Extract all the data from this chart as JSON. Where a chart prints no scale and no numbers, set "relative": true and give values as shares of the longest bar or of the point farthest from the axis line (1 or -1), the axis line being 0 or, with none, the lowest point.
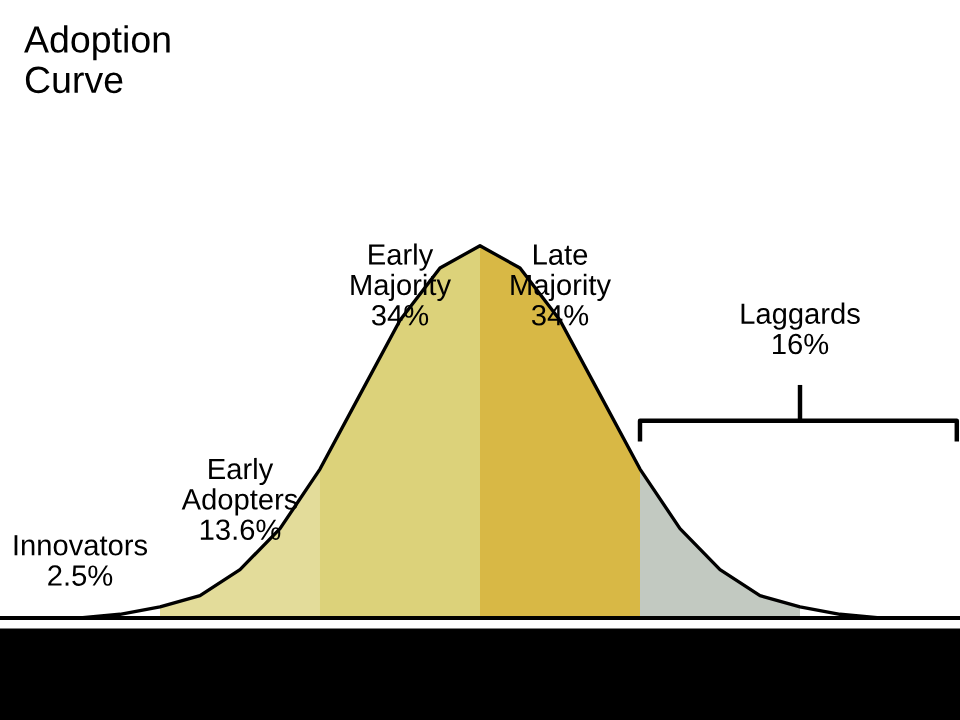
{
  "chart_data": {
    "type": "area",
    "title": "Adoption\nCurve",
    "relative": true,
    "categories": [
      null,
      null,
      null,
      null,
      null,
      null,
      null,
      null,
      null,
      null,
      null,
      null,
      null,
      null,
      null,
      null,
      null,
      null,
      null,
      null,
      null,
      null,
      null,
      null,
      null
    ],
    "series": [
      {
        "color": "#e3dc9a",
        "values": [
          null,
          null,
          null,
          null,
          0.03,
          0.06,
          0.13,
          0.24,
          0.4,
          null,
          null,
          null,
          null,
          null,
          null,
          null,
          null,
          null,
          null,
          null,
          null,
          null,
          null,
          null,
          null
        ]
      },
      {
        "color": "#dcd27a",
        "values": [
          null,
          null,
          null,
          null,
          null,
          null,
          null,
          null,
          0.4,
          0.6,
          0.8,
          0.94,
          1,
          null,
          null,
          null,
          null,
          null,
          null,
          null,
          null,
          null,
          null,
          null,
          null
        ]
      },
      {
        "color": "#d8b845",
        "values": [
          null,
          null,
          null,
          null,
          null,
          null,
          null,
          null,
          null,
          null,
          null,
          null,
          1,
          0.94,
          0.8,
          0.6,
          0.4,
          null,
          null,
          null,
          null,
          null,
          null,
          null,
          null
        ]
      },
      {
        "color": "#c2c9c1",
        "values": [
          null,
          null,
          null,
          null,
          null,
          null,
          null,
          null,
          null,
          null,
          null,
          null,
          null,
          null,
          null,
          null,
          0.4,
          0.24,
          0.13,
          0.06,
          0.03,
          null,
          null,
          null,
          null
        ]
      },
      {
        "type": "line",
        "color": "#000000",
        "values": [
          0,
          0,
          0,
          0.01,
          0.03,
          0.06,
          0.13,
          0.24,
          0.4,
          0.6,
          0.8,
          0.94,
          1,
          0.94,
          0.8,
          0.6,
          0.4,
          0.24,
          0.13,
          0.06,
          0.03,
          0.01,
          0,
          0,
          0
        ]
      }
    ],
    "annotations": [
      "Innovators\n2.5%",
      "Early\nAdopters\n13.6%",
      "Early\nMajority\n34%",
      "Late\nMajority\n34%",
      "Laggards\n16%"
    ]
  }
}
